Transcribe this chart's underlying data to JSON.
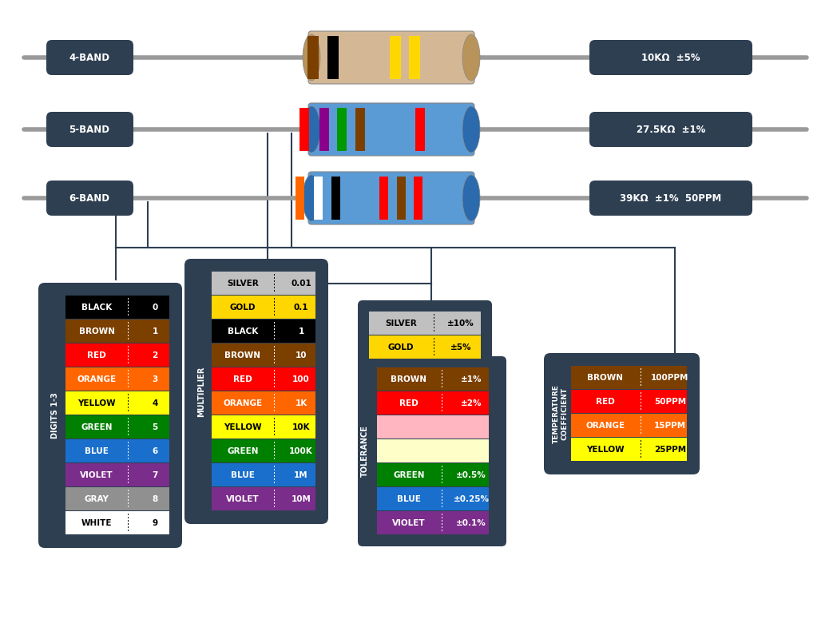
{
  "bg_color": "#ffffff",
  "dark_bg": "#2e3f52",
  "band_labels": [
    "4-BAND",
    "5-BAND",
    "6-BAND"
  ],
  "band_values": [
    "10KΩ  ±5%",
    "27.5KΩ  ±1%",
    "39KΩ  ±1%  50PPM"
  ],
  "digits_colors": [
    [
      "#000000",
      "BLACK",
      "0",
      "#ffffff"
    ],
    [
      "#7B3F00",
      "BROWN",
      "1",
      "#ffffff"
    ],
    [
      "#FF0000",
      "RED",
      "2",
      "#ffffff"
    ],
    [
      "#FF6600",
      "ORANGE",
      "3",
      "#ffffff"
    ],
    [
      "#FFFF00",
      "YELLOW",
      "4",
      "#000000"
    ],
    [
      "#008000",
      "GREEN",
      "5",
      "#ffffff"
    ],
    [
      "#1a6fcc",
      "BLUE",
      "6",
      "#ffffff"
    ],
    [
      "#7B2D8B",
      "VIOLET",
      "7",
      "#ffffff"
    ],
    [
      "#909090",
      "GRAY",
      "8",
      "#ffffff"
    ],
    [
      "#FFFFFF",
      "WHITE",
      "9",
      "#000000"
    ]
  ],
  "multiplier_colors": [
    [
      "#C0C0C0",
      "SILVER",
      "0.01",
      "#000000"
    ],
    [
      "#FFD700",
      "GOLD",
      "0.1",
      "#000000"
    ],
    [
      "#000000",
      "BLACK",
      "1",
      "#ffffff"
    ],
    [
      "#7B3F00",
      "BROWN",
      "10",
      "#ffffff"
    ],
    [
      "#FF0000",
      "RED",
      "100",
      "#ffffff"
    ],
    [
      "#FF6600",
      "ORANGE",
      "1K",
      "#ffffff"
    ],
    [
      "#FFFF00",
      "YELLOW",
      "10K",
      "#000000"
    ],
    [
      "#008000",
      "GREEN",
      "100K",
      "#ffffff"
    ],
    [
      "#1a6fcc",
      "BLUE",
      "1M",
      "#ffffff"
    ],
    [
      "#7B2D8B",
      "VIOLET",
      "10M",
      "#ffffff"
    ]
  ],
  "tolerance_top": [
    [
      "#C0C0C0",
      "SILVER",
      "±10%",
      "#000000"
    ],
    [
      "#FFD700",
      "GOLD",
      "±5%",
      "#000000"
    ]
  ],
  "tolerance_main": [
    [
      "#7B3F00",
      "BROWN",
      "±1%",
      "#ffffff"
    ],
    [
      "#FF0000",
      "RED",
      "±2%",
      "#ffffff"
    ],
    [
      "#FFB6C1",
      "",
      "",
      "#000000"
    ],
    [
      "#FEFEC8",
      "",
      "",
      "#000000"
    ],
    [
      "#008000",
      "GREEN",
      "±0.5%",
      "#ffffff"
    ],
    [
      "#1a6fcc",
      "BLUE",
      "±0.25%",
      "#ffffff"
    ],
    [
      "#7B2D8B",
      "VIOLET",
      "±0.1%",
      "#ffffff"
    ]
  ],
  "temp_colors": [
    [
      "#7B3F00",
      "BROWN",
      "100PPM",
      "#ffffff"
    ],
    [
      "#FF0000",
      "RED",
      "50PPM",
      "#ffffff"
    ],
    [
      "#FF6600",
      "ORANGE",
      "15PPM",
      "#ffffff"
    ],
    [
      "#FFFF00",
      "YELLOW",
      "25PPM",
      "#000000"
    ]
  ]
}
